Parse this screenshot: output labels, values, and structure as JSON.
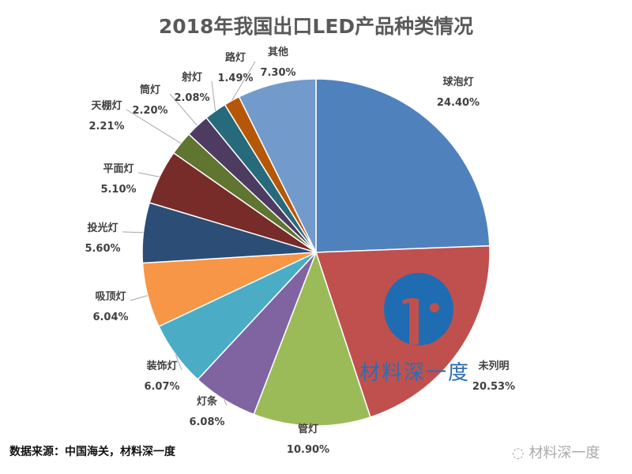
{
  "chart_data": {
    "type": "pie",
    "title": "2018年我国出口LED产品种类情况",
    "start": "top",
    "direction": "clockwise",
    "slices": [
      {
        "label": "球泡灯",
        "value": 24.4,
        "display": "24.40%",
        "color": "#4f81bd"
      },
      {
        "label": "未列明",
        "value": 20.53,
        "display": "20.53%",
        "color": "#c0504d"
      },
      {
        "label": "管灯",
        "value": 10.9,
        "display": "10.90%",
        "color": "#9bbb59"
      },
      {
        "label": "灯条",
        "value": 6.08,
        "display": "6.08%",
        "color": "#8064a2"
      },
      {
        "label": "装饰灯",
        "value": 6.07,
        "display": "6.07%",
        "color": "#4bacc6"
      },
      {
        "label": "吸顶灯",
        "value": 6.04,
        "display": "6.04%",
        "color": "#f79646"
      },
      {
        "label": "投光灯",
        "value": 5.6,
        "display": "5.60%",
        "color": "#2c4d75"
      },
      {
        "label": "平面灯",
        "value": 5.1,
        "display": "5.10%",
        "color": "#772c2a"
      },
      {
        "label": "天棚灯",
        "value": 2.21,
        "display": "2.21%",
        "color": "#5f7530"
      },
      {
        "label": "筒灯",
        "value": 2.2,
        "display": "2.20%",
        "color": "#4d3b62"
      },
      {
        "label": "射灯",
        "value": 2.08,
        "display": "2.08%",
        "color": "#276a7c"
      },
      {
        "label": "路灯",
        "value": 1.49,
        "display": "1.49%",
        "color": "#b65708"
      },
      {
        "label": "其他",
        "value": 7.3,
        "display": "7.30%",
        "color": "#729aca"
      }
    ]
  },
  "source": "数据来源：中国海关，材料深一度",
  "watermark": "材料深一度",
  "watermark_center": "材料深一度"
}
